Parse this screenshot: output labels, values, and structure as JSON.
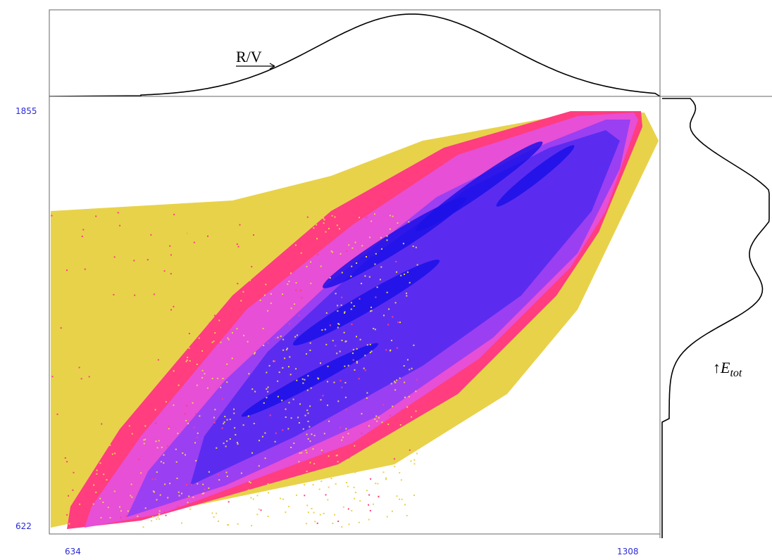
{
  "chart_data": {
    "type": "heatmap",
    "description_kind": "2D scatter density plot with marginal projections",
    "x_axis": {
      "min_label": "634",
      "max_label": "1308",
      "range": [
        634,
        1308
      ]
    },
    "y_axis": {
      "min_label": "622",
      "max_label": "1855",
      "range": [
        622,
        1855
      ]
    },
    "top_projection_label": "R/V",
    "right_projection_label_prefix": "↑",
    "right_projection_label_main": "E",
    "right_projection_label_sub": "tot",
    "colors": {
      "level1": "#e8d24a",
      "level2": "#ff3d7f",
      "level3": "#e64fd6",
      "level4": "#9b3ff2",
      "level5": "#5b2cf0",
      "level6": "#1c10e8",
      "axis_text": "#2b2bd6",
      "frame": "#555555"
    }
  }
}
